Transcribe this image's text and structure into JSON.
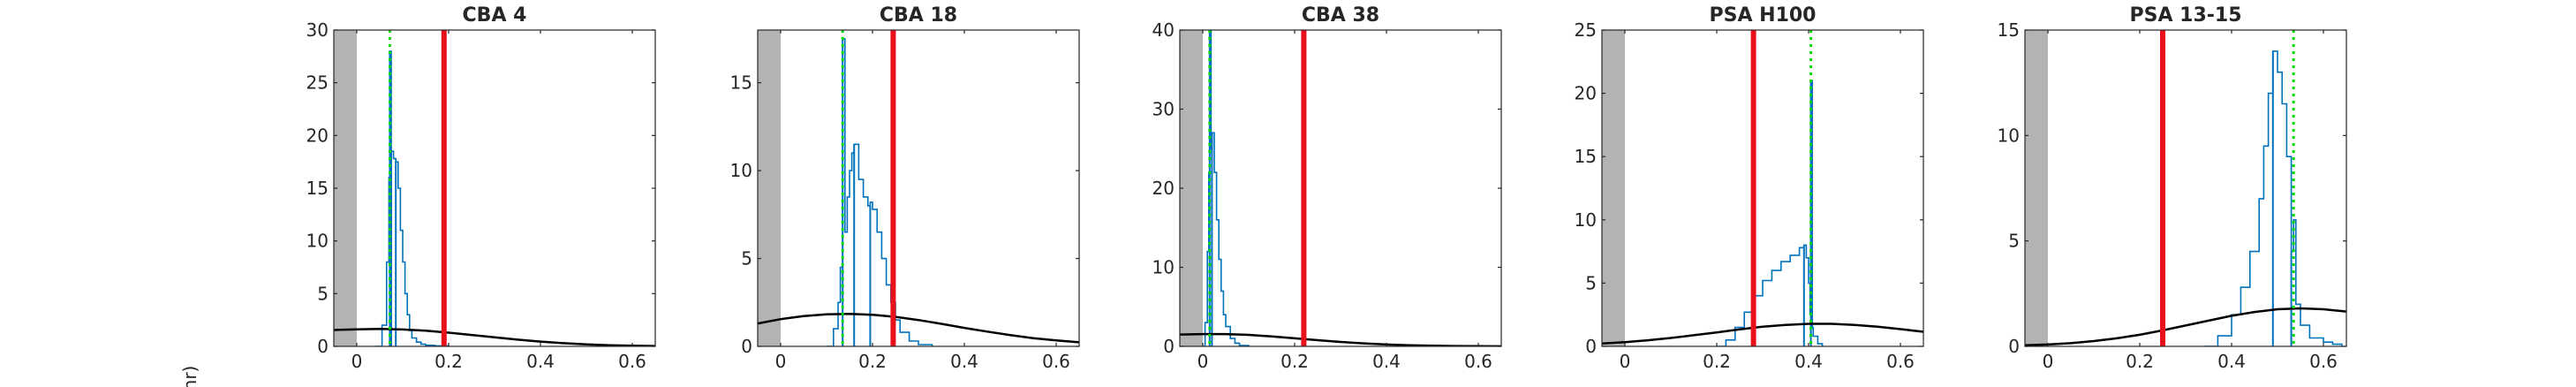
{
  "figure": {
    "ylabel_fragment": "nr)"
  },
  "colors": {
    "histogram": "#0072BD",
    "mode_line": "#00DD00",
    "threshold_line": "#E8101A",
    "prior_curve": "#000000",
    "excluded_region": "#B3B3B3",
    "axes": "#262626"
  },
  "chart_data": [
    {
      "type": "area",
      "title": "CBA 4",
      "xlim": [
        -0.05,
        0.65
      ],
      "ylim": [
        0,
        30
      ],
      "xticks": [
        0,
        0.2,
        0.4,
        0.6
      ],
      "xtick_labels": [
        "0",
        "0.2",
        "0.4",
        "0.6"
      ],
      "yticks": [
        0,
        5,
        10,
        15,
        20,
        25,
        30
      ],
      "ytick_labels": [
        "0",
        "5",
        "10",
        "15",
        "20",
        "25",
        "30"
      ],
      "grey_region": [
        -0.05,
        0.0
      ],
      "mode_x": 0.072,
      "threshold_x": 0.19,
      "histogram_peaks": [
        [
          0.072,
          28
        ],
        [
          0.075,
          18.5
        ],
        [
          0.085,
          17.5
        ]
      ],
      "histogram": {
        "x": [
          0.04,
          0.055,
          0.065,
          0.07,
          0.072,
          0.075,
          0.08,
          0.085,
          0.09,
          0.095,
          0.1,
          0.105,
          0.11,
          0.115,
          0.12,
          0.13,
          0.14,
          0.15,
          0.17,
          0.2
        ],
        "y": [
          0,
          2,
          8,
          16,
          28,
          18.5,
          17.8,
          17.5,
          15,
          11,
          8,
          5,
          3,
          1.5,
          0.8,
          0.4,
          0.2,
          0.1,
          0.05,
          0
        ]
      },
      "prior_curve": {
        "x": [
          -0.05,
          0.0,
          0.05,
          0.1,
          0.15,
          0.2,
          0.25,
          0.3,
          0.35,
          0.4,
          0.45,
          0.5,
          0.55,
          0.6,
          0.65
        ],
        "y": [
          1.55,
          1.62,
          1.65,
          1.6,
          1.48,
          1.3,
          1.08,
          0.86,
          0.64,
          0.45,
          0.3,
          0.19,
          0.11,
          0.06,
          0.03
        ]
      }
    },
    {
      "type": "area",
      "title": "CBA 18",
      "xlim": [
        -0.05,
        0.65
      ],
      "ylim": [
        0,
        18
      ],
      "xticks": [
        0,
        0.2,
        0.4,
        0.6
      ],
      "xtick_labels": [
        "0",
        "0.2",
        "0.4",
        "0.6"
      ],
      "yticks": [
        0,
        5,
        10,
        15
      ],
      "ytick_labels": [
        "0",
        "5",
        "10",
        "15"
      ],
      "grey_region": [
        -0.05,
        0.0
      ],
      "mode_x": 0.135,
      "threshold_x": 0.245,
      "histogram_peaks": [
        [
          0.135,
          17.5
        ],
        [
          0.16,
          11.5
        ],
        [
          0.195,
          8
        ]
      ],
      "histogram": {
        "x": [
          0.1,
          0.115,
          0.125,
          0.13,
          0.135,
          0.14,
          0.145,
          0.15,
          0.155,
          0.16,
          0.17,
          0.18,
          0.19,
          0.195,
          0.2,
          0.21,
          0.22,
          0.23,
          0.24,
          0.25,
          0.26,
          0.28,
          0.3,
          0.33
        ],
        "y": [
          0,
          1,
          2.5,
          4.5,
          17.5,
          6.5,
          8.5,
          10,
          11,
          11.5,
          9.5,
          8.5,
          8,
          8.2,
          7.8,
          6.5,
          5,
          3.5,
          2.5,
          1.5,
          0.8,
          0.3,
          0.1,
          0
        ]
      },
      "prior_curve": {
        "x": [
          -0.05,
          0.0,
          0.05,
          0.1,
          0.15,
          0.2,
          0.25,
          0.3,
          0.35,
          0.4,
          0.45,
          0.5,
          0.55,
          0.6,
          0.65
        ],
        "y": [
          1.3,
          1.55,
          1.72,
          1.82,
          1.85,
          1.8,
          1.68,
          1.5,
          1.28,
          1.05,
          0.84,
          0.64,
          0.47,
          0.34,
          0.23
        ]
      }
    },
    {
      "type": "area",
      "title": "CBA 38",
      "xlim": [
        -0.05,
        0.65
      ],
      "ylim": [
        0,
        40
      ],
      "xticks": [
        0,
        0.2,
        0.4,
        0.6
      ],
      "xtick_labels": [
        "0",
        "0.2",
        "0.4",
        "0.6"
      ],
      "yticks": [
        0,
        10,
        20,
        30,
        40
      ],
      "ytick_labels": [
        "0",
        "10",
        "20",
        "30",
        "40"
      ],
      "grey_region": [
        -0.05,
        0.0
      ],
      "mode_x": 0.015,
      "threshold_x": 0.22,
      "histogram_peaks": [
        [
          0.015,
          40
        ],
        [
          0.02,
          27
        ]
      ],
      "histogram": {
        "x": [
          0.0,
          0.005,
          0.01,
          0.013,
          0.015,
          0.018,
          0.02,
          0.025,
          0.03,
          0.035,
          0.04,
          0.045,
          0.05,
          0.06,
          0.07,
          0.08,
          0.1
        ],
        "y": [
          0,
          3,
          12,
          22,
          40,
          25,
          27,
          22,
          16,
          11,
          7,
          4,
          2.5,
          1,
          0.4,
          0.1,
          0
        ]
      },
      "prior_curve": {
        "x": [
          -0.05,
          0.0,
          0.05,
          0.1,
          0.15,
          0.2,
          0.25,
          0.3,
          0.35,
          0.4,
          0.45,
          0.5,
          0.55,
          0.6,
          0.65
        ],
        "y": [
          1.5,
          1.55,
          1.55,
          1.45,
          1.25,
          1.02,
          0.78,
          0.56,
          0.38,
          0.24,
          0.14,
          0.08,
          0.04,
          0.02,
          0.01
        ]
      }
    },
    {
      "type": "area",
      "title": "PSA H100",
      "xlim": [
        -0.05,
        0.65
      ],
      "ylim": [
        0,
        25
      ],
      "xticks": [
        0,
        0.2,
        0.4,
        0.6
      ],
      "xtick_labels": [
        "0",
        "0.2",
        "0.4",
        "0.6"
      ],
      "yticks": [
        0,
        5,
        10,
        15,
        20,
        25
      ],
      "ytick_labels": [
        "0",
        "5",
        "10",
        "15",
        "20",
        "25"
      ],
      "grey_region": [
        -0.05,
        0.0
      ],
      "mode_x": 0.405,
      "threshold_x": 0.28,
      "histogram_peaks": [
        [
          0.39,
          8
        ],
        [
          0.405,
          21
        ]
      ],
      "histogram": {
        "x": [
          0.2,
          0.22,
          0.24,
          0.26,
          0.28,
          0.3,
          0.32,
          0.34,
          0.36,
          0.38,
          0.39,
          0.395,
          0.4,
          0.403,
          0.405,
          0.408,
          0.41,
          0.42,
          0.43
        ],
        "y": [
          0,
          0.5,
          1.5,
          2.7,
          4,
          5.2,
          6,
          6.7,
          7.2,
          7.8,
          8,
          7,
          5,
          2.5,
          21,
          1.5,
          0.8,
          0.2,
          0
        ]
      },
      "prior_curve": {
        "x": [
          -0.05,
          0.0,
          0.05,
          0.1,
          0.15,
          0.2,
          0.25,
          0.3,
          0.35,
          0.4,
          0.45,
          0.5,
          0.55,
          0.6,
          0.65
        ],
        "y": [
          0.22,
          0.33,
          0.48,
          0.66,
          0.88,
          1.1,
          1.35,
          1.55,
          1.7,
          1.78,
          1.78,
          1.7,
          1.55,
          1.36,
          1.15
        ]
      }
    },
    {
      "type": "area",
      "title": "PSA 13-15",
      "xlim": [
        -0.05,
        0.65
      ],
      "ylim": [
        0,
        15
      ],
      "xticks": [
        0,
        0.2,
        0.4,
        0.6
      ],
      "xtick_labels": [
        "0",
        "0.2",
        "0.4",
        "0.6"
      ],
      "yticks": [
        0,
        5,
        10,
        15
      ],
      "ytick_labels": [
        "0",
        "5",
        "10",
        "15"
      ],
      "grey_region": [
        -0.05,
        0.0
      ],
      "mode_x": 0.535,
      "threshold_x": 0.25,
      "histogram_peaks": [
        [
          0.49,
          14
        ],
        [
          0.53,
          4.5
        ]
      ],
      "histogram": {
        "x": [
          0.34,
          0.37,
          0.4,
          0.42,
          0.44,
          0.46,
          0.47,
          0.48,
          0.49,
          0.5,
          0.51,
          0.52,
          0.53,
          0.535,
          0.54,
          0.55,
          0.57,
          0.6,
          0.62,
          0.64
        ],
        "y": [
          0,
          0.5,
          1.5,
          2.8,
          4.5,
          7,
          9.5,
          12,
          14,
          13,
          11.5,
          9,
          4.5,
          6,
          2,
          1,
          0.4,
          0.2,
          0.1,
          0
        ]
      },
      "prior_curve": {
        "x": [
          -0.05,
          0.0,
          0.05,
          0.1,
          0.15,
          0.2,
          0.25,
          0.3,
          0.35,
          0.4,
          0.45,
          0.5,
          0.55,
          0.6,
          0.65
        ],
        "y": [
          0.05,
          0.09,
          0.15,
          0.25,
          0.38,
          0.55,
          0.76,
          0.99,
          1.22,
          1.45,
          1.63,
          1.76,
          1.8,
          1.76,
          1.65
        ]
      }
    }
  ]
}
